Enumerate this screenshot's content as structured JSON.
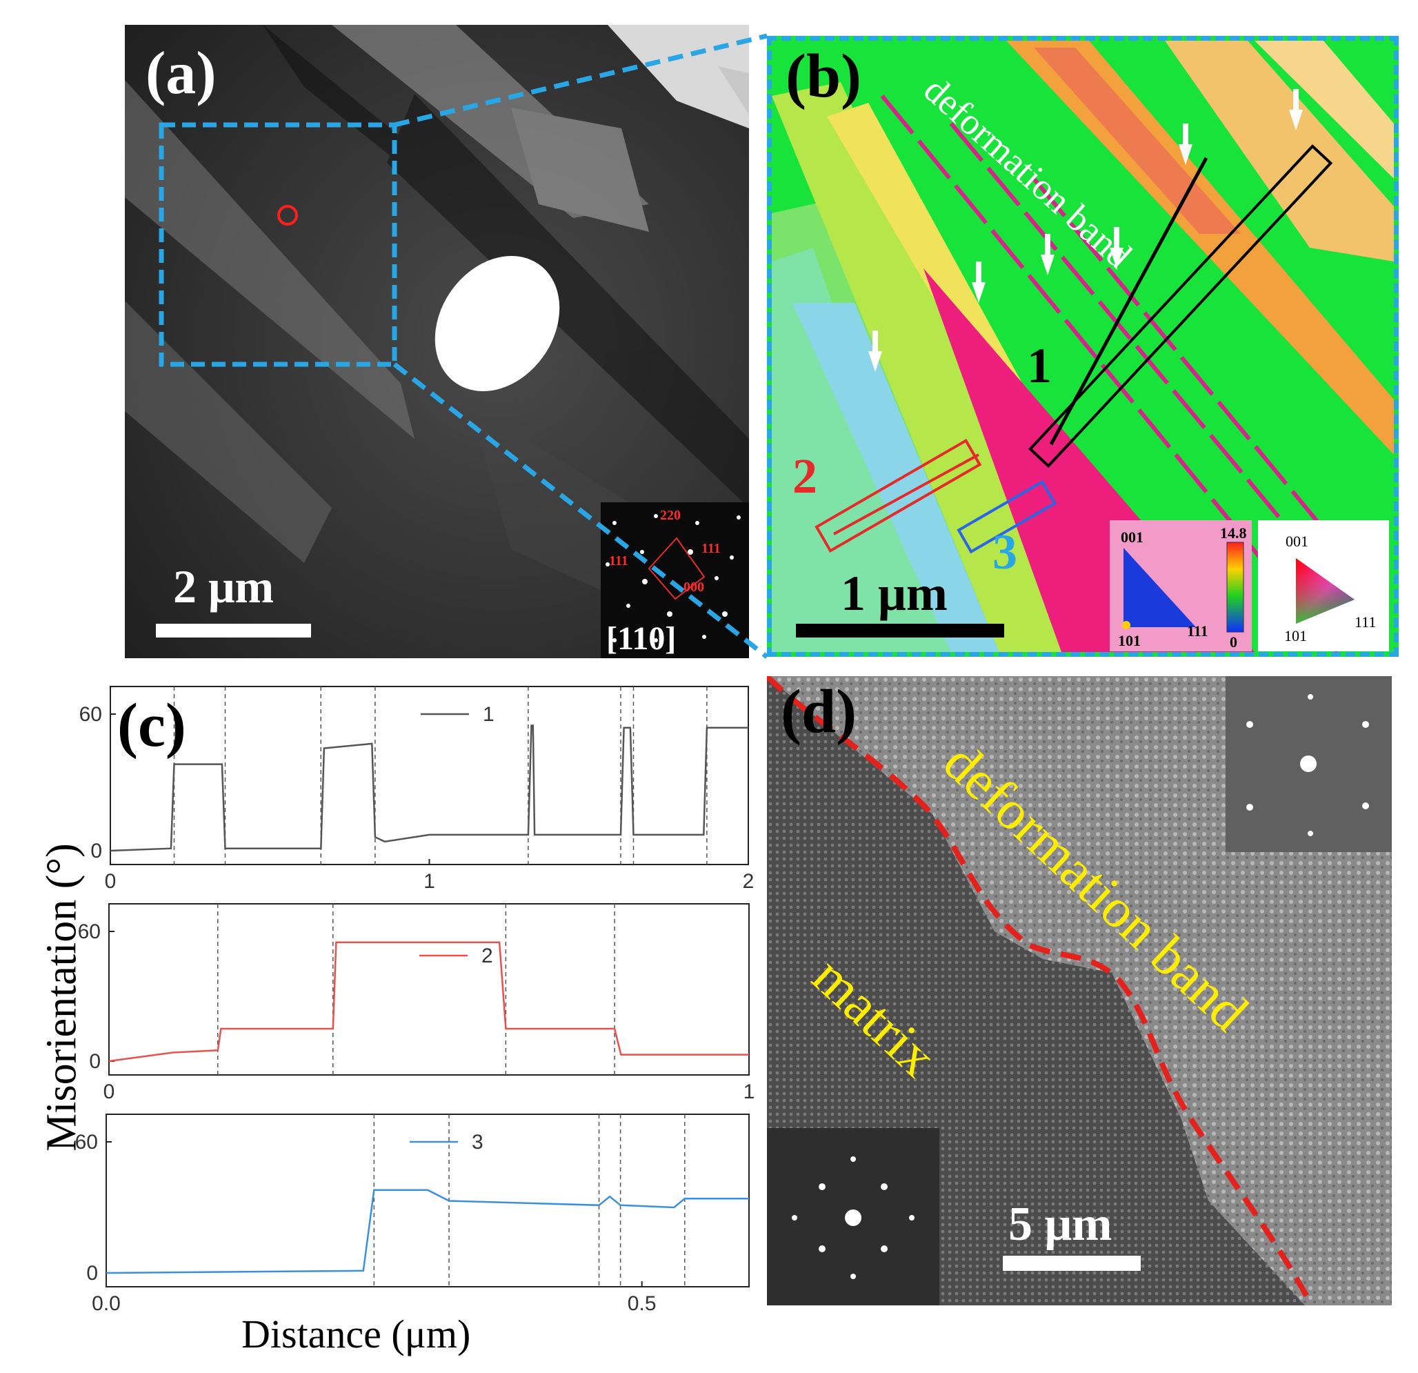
{
  "panel_a": {
    "label": "(a)",
    "scale_bar": "2 μm",
    "zone_axis": "[110]",
    "diffraction_spots": {
      "top": "220",
      "left": "111",
      "right": "111",
      "bottom": "000"
    }
  },
  "panel_b": {
    "label": "(b)",
    "annotation": "deformation band",
    "scale_bar": "1 μm",
    "line_labels": [
      "1",
      "2",
      "3"
    ],
    "legend_left": {
      "corner_top": "001",
      "corner_left": "101",
      "corner_right": "111",
      "scale_max": "14.8",
      "scale_min": "0"
    },
    "legend_right": {
      "corner_top": "001",
      "corner_left": "101",
      "corner_right": "111"
    }
  },
  "panel_c": {
    "label": "(c)"
  },
  "panel_d": {
    "label": "(d)",
    "annotation_band": "deformation band",
    "annotation_matrix": "matrix",
    "scale_bar": "5 μm"
  },
  "chart_data": [
    {
      "type": "line",
      "ylabel": "Misorientation (°)",
      "xlabel": "Distance (μm)",
      "xlim": [
        0,
        2
      ],
      "ylim": [
        0,
        60
      ],
      "yticks": [
        "0",
        "60"
      ],
      "xticks": [
        "0",
        "1",
        "2"
      ],
      "series": [
        {
          "name": "1",
          "color": "#555555",
          "x": [
            0,
            0.19,
            0.2,
            0.35,
            0.36,
            0.66,
            0.67,
            0.82,
            0.83,
            0.86,
            1,
            1.31,
            1.32,
            1.325,
            1.33,
            1.6,
            1.61,
            1.63,
            1.64,
            1.86,
            1.87,
            2
          ],
          "y": [
            0,
            1,
            38,
            38,
            1,
            1,
            45,
            47,
            6,
            4,
            7,
            7,
            55,
            55,
            7,
            7,
            54,
            54,
            7,
            7,
            54,
            54
          ]
        }
      ],
      "vlines": [
        0.2,
        0.36,
        0.66,
        0.83,
        1.31,
        1.6,
        1.64,
        1.87
      ]
    },
    {
      "type": "line",
      "xlim": [
        0,
        1
      ],
      "ylim": [
        0,
        60
      ],
      "yticks": [
        "0",
        "60"
      ],
      "xticks": [
        "0",
        "1"
      ],
      "series": [
        {
          "name": "2",
          "color": "#e8514f",
          "x": [
            0,
            0.1,
            0.17,
            0.175,
            0.35,
            0.355,
            0.61,
            0.62,
            0.79,
            0.8,
            1
          ],
          "y": [
            0,
            4,
            5,
            15,
            15,
            55,
            55,
            15,
            15,
            3,
            3
          ]
        }
      ],
      "vlines": [
        0.17,
        0.35,
        0.62,
        0.79
      ]
    },
    {
      "type": "line",
      "xlim": [
        0,
        0.6
      ],
      "ylim": [
        0,
        60
      ],
      "yticks": [
        "0",
        "60"
      ],
      "xticks": [
        "0.0",
        "0.5"
      ],
      "series": [
        {
          "name": "3",
          "color": "#3c8fdc",
          "x": [
            0,
            0.24,
            0.25,
            0.3,
            0.32,
            0.46,
            0.47,
            0.48,
            0.53,
            0.54,
            0.6
          ],
          "y": [
            0,
            1,
            38,
            38,
            33,
            31,
            35,
            31,
            30,
            34,
            34
          ]
        }
      ],
      "vlines": [
        0.25,
        0.32,
        0.46,
        0.48,
        0.54
      ]
    }
  ],
  "colors": {
    "accent_blue": "#29a6e6",
    "band_green": "#17e33a",
    "matrix_pink": "#ee1f7c",
    "dashed_red": "#e5211c",
    "yellow_text": "#ffed00"
  }
}
